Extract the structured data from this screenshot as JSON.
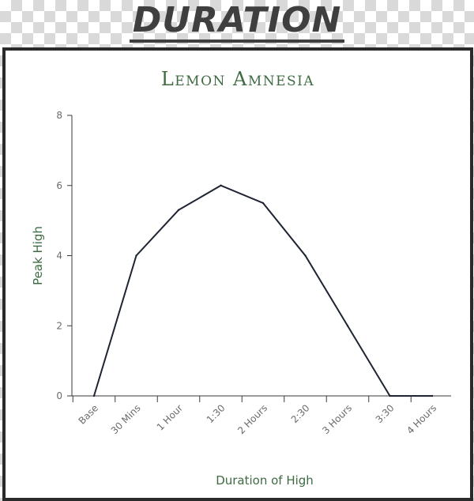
{
  "banner": {
    "title": "DURATION"
  },
  "colors": {
    "title_green": "#3e6b42",
    "line": "#1f2433",
    "axis": "#3a3a3a"
  },
  "chart_data": {
    "type": "line",
    "title": "Lemon Amnesia",
    "xlabel": "Duration of High",
    "ylabel": "Peak High",
    "categories": [
      "Base",
      "30 Mins",
      "1 Hour",
      "1:30",
      "2 Hours",
      "2:30",
      "3 Hours",
      "3:30",
      "4 Hours"
    ],
    "series": [
      {
        "values": [
          0,
          4,
          5.3,
          6,
          5.5,
          4,
          2,
          0,
          0
        ]
      }
    ],
    "ylim": [
      0,
      8
    ],
    "yticks": [
      0,
      2,
      4,
      6,
      8
    ],
    "grid": false,
    "legend": "none"
  }
}
